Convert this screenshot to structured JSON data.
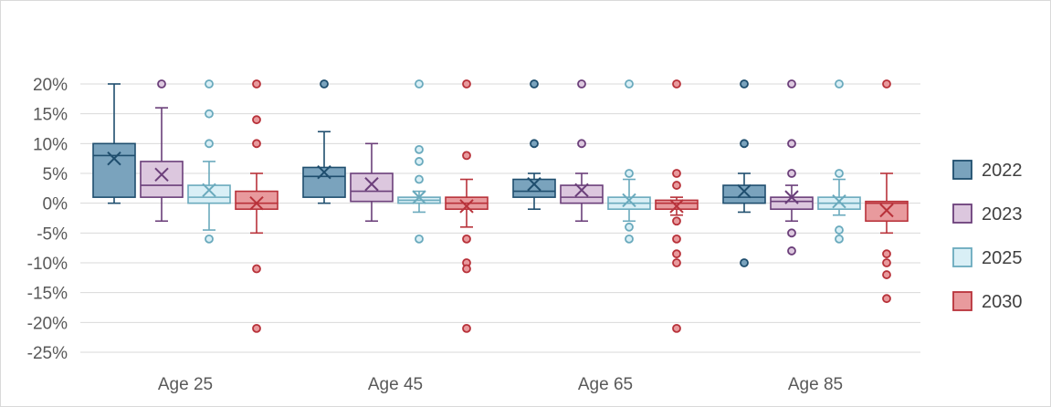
{
  "chart_data": {
    "type": "box",
    "title": "",
    "xlabel": "",
    "ylabel": "",
    "ylim": [
      -25,
      20
    ],
    "yticks": [
      20,
      15,
      10,
      5,
      0,
      -5,
      -10,
      -15,
      -20,
      -25
    ],
    "ytick_labels": [
      "20%",
      "15%",
      "10%",
      "5%",
      "0%",
      "-5%",
      "-10%",
      "-15%",
      "-20%",
      "-25%"
    ],
    "grid": true,
    "legend_position": "right",
    "categories": [
      "Age 25",
      "Age 45",
      "Age 65",
      "Age 85"
    ],
    "series": [
      {
        "name": "2022",
        "stroke": "#1f4e6e",
        "fill": "#7aa3bd",
        "boxes": [
          {
            "min": 0,
            "q1": 1,
            "median": 8,
            "q3": 10,
            "max": 20,
            "mean": 7.5,
            "outliers": []
          },
          {
            "min": 0,
            "q1": 1,
            "median": 4.5,
            "q3": 6,
            "max": 12,
            "mean": 5.2,
            "outliers": [
              20
            ]
          },
          {
            "min": -1,
            "q1": 1,
            "median": 2,
            "q3": 4,
            "max": 5,
            "mean": 3.2,
            "outliers": [
              10,
              20
            ]
          },
          {
            "min": -1.5,
            "q1": 0,
            "median": 1,
            "q3": 3,
            "max": 5,
            "mean": 2,
            "outliers": [
              10,
              20,
              -10
            ]
          }
        ]
      },
      {
        "name": "2023",
        "stroke": "#6b3f7a",
        "fill": "#dcc7de",
        "boxes": [
          {
            "min": -3,
            "q1": 1,
            "median": 3,
            "q3": 7,
            "max": 16,
            "mean": 4.8,
            "outliers": [
              20
            ]
          },
          {
            "min": -3,
            "q1": 0.3,
            "median": 2,
            "q3": 5,
            "max": 10,
            "mean": 3.2,
            "outliers": []
          },
          {
            "min": -3,
            "q1": 0,
            "median": 1,
            "q3": 3,
            "max": 5,
            "mean": 2.2,
            "outliers": [
              10,
              20
            ]
          },
          {
            "min": -3,
            "q1": -1,
            "median": 0.3,
            "q3": 1,
            "max": 3,
            "mean": 1,
            "outliers": [
              5,
              10,
              20,
              -5,
              -8
            ]
          }
        ]
      },
      {
        "name": "2025",
        "stroke": "#6aaabd",
        "fill": "#d9eff6",
        "boxes": [
          {
            "min": -4.5,
            "q1": 0,
            "median": 1,
            "q3": 3,
            "max": 7,
            "mean": 2.2,
            "outliers": [
              10,
              15,
              20,
              -6
            ]
          },
          {
            "min": -1.5,
            "q1": 0,
            "median": 0.5,
            "q3": 1,
            "max": 2,
            "mean": 1,
            "outliers": [
              4,
              7,
              9,
              20,
              -6
            ]
          },
          {
            "min": -3,
            "q1": -1,
            "median": 0,
            "q3": 1,
            "max": 4,
            "mean": 0.5,
            "outliers": [
              5,
              20,
              -4,
              -6
            ]
          },
          {
            "min": -2,
            "q1": -1,
            "median": 0,
            "q3": 1,
            "max": 4,
            "mean": 0.3,
            "outliers": [
              5,
              20,
              -4.5,
              -6
            ]
          }
        ]
      },
      {
        "name": "2030",
        "stroke": "#b8323a",
        "fill": "#e89a9d",
        "boxes": [
          {
            "min": -5,
            "q1": -1,
            "median": 0,
            "q3": 2,
            "max": 5,
            "mean": 0,
            "outliers": [
              10,
              14,
              20,
              -11,
              -21
            ]
          },
          {
            "min": -4,
            "q1": -1,
            "median": 0,
            "q3": 1,
            "max": 4,
            "mean": -0.5,
            "outliers": [
              8,
              20,
              -6,
              -10,
              -11,
              -21
            ]
          },
          {
            "min": -2,
            "q1": -1,
            "median": 0,
            "q3": 0.5,
            "max": 1,
            "mean": -0.5,
            "outliers": [
              3,
              5,
              20,
              -3,
              -6,
              -8.5,
              -10,
              -21
            ]
          },
          {
            "min": -5,
            "q1": -3,
            "median": 0,
            "q3": 0.3,
            "max": 5,
            "mean": -1.2,
            "outliers": [
              20,
              -8.5,
              -10,
              -12,
              -16
            ]
          }
        ]
      }
    ]
  }
}
